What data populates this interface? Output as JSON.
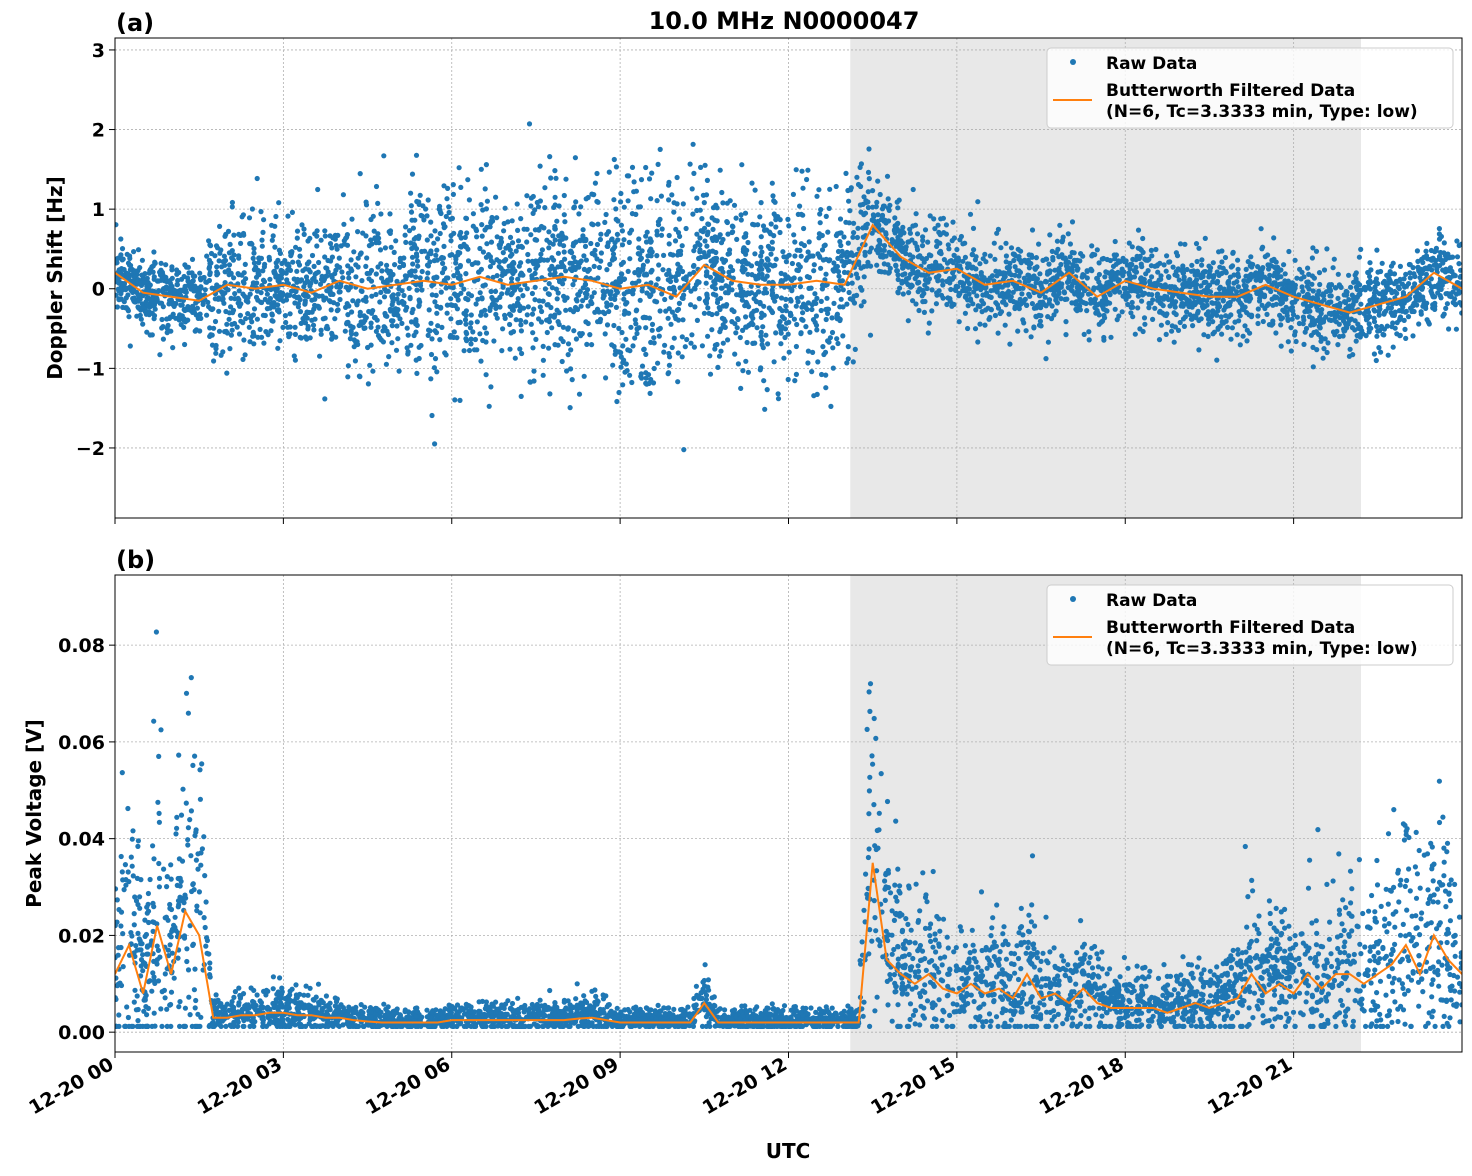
{
  "title": "10.0 MHz N0000047",
  "xlabel": "UTC",
  "x_ticks": [
    {
      "hour": 0,
      "label": "12-20 00"
    },
    {
      "hour": 3,
      "label": "12-20 03"
    },
    {
      "hour": 6,
      "label": "12-20 06"
    },
    {
      "hour": 9,
      "label": "12-20 09"
    },
    {
      "hour": 12,
      "label": "12-20 12"
    },
    {
      "hour": 15,
      "label": "12-20 15"
    },
    {
      "hour": 18,
      "label": "12-20 18"
    },
    {
      "hour": 21,
      "label": "12-20 21"
    }
  ],
  "colors": {
    "raw": "#1f77b4",
    "filtered": "#ff7f0e",
    "shade": "#e8e8e8",
    "grid": "#b0b0b0"
  },
  "chart_data": [
    {
      "type": "scatter+line",
      "panel_label": "(a)",
      "ylabel": "Doppler Shift [Hz]",
      "xlim_hours": [
        0,
        24
      ],
      "ylim": [
        -2.88,
        3.15
      ],
      "y_ticks": [
        {
          "v": -2,
          "label": "−2"
        },
        {
          "v": -1,
          "label": "−1"
        },
        {
          "v": 0,
          "label": "0"
        },
        {
          "v": 1,
          "label": "1"
        },
        {
          "v": 2,
          "label": "2"
        },
        {
          "v": 3,
          "label": "3"
        }
      ],
      "grid": true,
      "shaded_region_hours": [
        13.1,
        22.2
      ],
      "legend": {
        "placement": "top-right",
        "raw": "Raw Data",
        "filtered_line1": "Butterworth Filtered Data",
        "filtered_line2": "(N=6, Tc=3.3333 min, Type: low)"
      },
      "filtered": {
        "step_hours": 0.5,
        "values": [
          0.2,
          -0.05,
          -0.1,
          -0.15,
          0.05,
          0,
          0.05,
          -0.05,
          0.1,
          0,
          0.05,
          0.1,
          0.05,
          0.15,
          0.05,
          0.1,
          0.15,
          0.1,
          0,
          0.05,
          -0.1,
          0.3,
          0.1,
          0.05,
          0.05,
          0.1,
          0.05,
          0.8,
          0.4,
          0.2,
          0.25,
          0.05,
          0.1,
          -0.05,
          0.2,
          -0.1,
          0.1,
          0,
          -0.05,
          -0.1,
          -0.1,
          0.05,
          -0.1,
          -0.2,
          -0.3,
          -0.2,
          -0.1,
          0.2,
          0.0
        ]
      },
      "raw_spread": [
        {
          "from": 0,
          "to": 1.6,
          "spread": 0.3
        },
        {
          "from": 1.6,
          "to": 4.5,
          "spread": 0.6
        },
        {
          "from": 4.5,
          "to": 8.5,
          "spread": 0.8
        },
        {
          "from": 8.5,
          "to": 10.5,
          "spread": 0.9
        },
        {
          "from": 10.5,
          "to": 13.5,
          "spread": 0.75
        },
        {
          "from": 13.5,
          "to": 24,
          "spread": 0.35
        }
      ]
    },
    {
      "type": "scatter+line",
      "panel_label": "(b)",
      "ylabel": "Peak Voltage [V]",
      "xlim_hours": [
        0,
        24
      ],
      "ylim": [
        -0.0041,
        0.0945
      ],
      "y_ticks": [
        {
          "v": 0,
          "label": "0.00"
        },
        {
          "v": 0.02,
          "label": "0.02"
        },
        {
          "v": 0.04,
          "label": "0.04"
        },
        {
          "v": 0.06,
          "label": "0.06"
        },
        {
          "v": 0.08,
          "label": "0.08"
        }
      ],
      "grid": true,
      "shaded_region_hours": [
        13.1,
        22.2
      ],
      "legend": {
        "placement": "top-right",
        "raw": "Raw Data",
        "filtered_line1": "Butterworth Filtered Data",
        "filtered_line2": "(N=6, Tc=3.3333 min, Type: low)"
      },
      "filtered": {
        "step_hours": 0.25,
        "values": [
          0.012,
          0.018,
          0.008,
          0.022,
          0.012,
          0.025,
          0.02,
          0.003,
          0.003,
          0.0035,
          0.0035,
          0.004,
          0.004,
          0.0035,
          0.0035,
          0.003,
          0.003,
          0.0025,
          0.0022,
          0.002,
          0.002,
          0.002,
          0.002,
          0.002,
          0.0025,
          0.0025,
          0.0025,
          0.0025,
          0.0025,
          0.0025,
          0.0025,
          0.0025,
          0.0025,
          0.0028,
          0.003,
          0.0025,
          0.002,
          0.002,
          0.002,
          0.002,
          0.002,
          0.002,
          0.006,
          0.002,
          0.002,
          0.002,
          0.002,
          0.002,
          0.002,
          0.002,
          0.002,
          0.002,
          0.002,
          0.002,
          0.035,
          0.015,
          0.012,
          0.01,
          0.012,
          0.009,
          0.008,
          0.01,
          0.008,
          0.009,
          0.007,
          0.012,
          0.007,
          0.008,
          0.006,
          0.009,
          0.006,
          0.005,
          0.005,
          0.005,
          0.005,
          0.004,
          0.005,
          0.006,
          0.005,
          0.006,
          0.007,
          0.012,
          0.008,
          0.01,
          0.008,
          0.012,
          0.009,
          0.012,
          0.012,
          0.01,
          0.012,
          0.014,
          0.018,
          0.012,
          0.02,
          0.015,
          0.012
        ]
      },
      "raw_spread": [
        {
          "from": 0,
          "to": 1.7,
          "spread": 0.9
        },
        {
          "from": 1.7,
          "to": 13.4,
          "spread": 0.6
        },
        {
          "from": 13.4,
          "to": 24,
          "spread": 0.7
        }
      ]
    }
  ]
}
